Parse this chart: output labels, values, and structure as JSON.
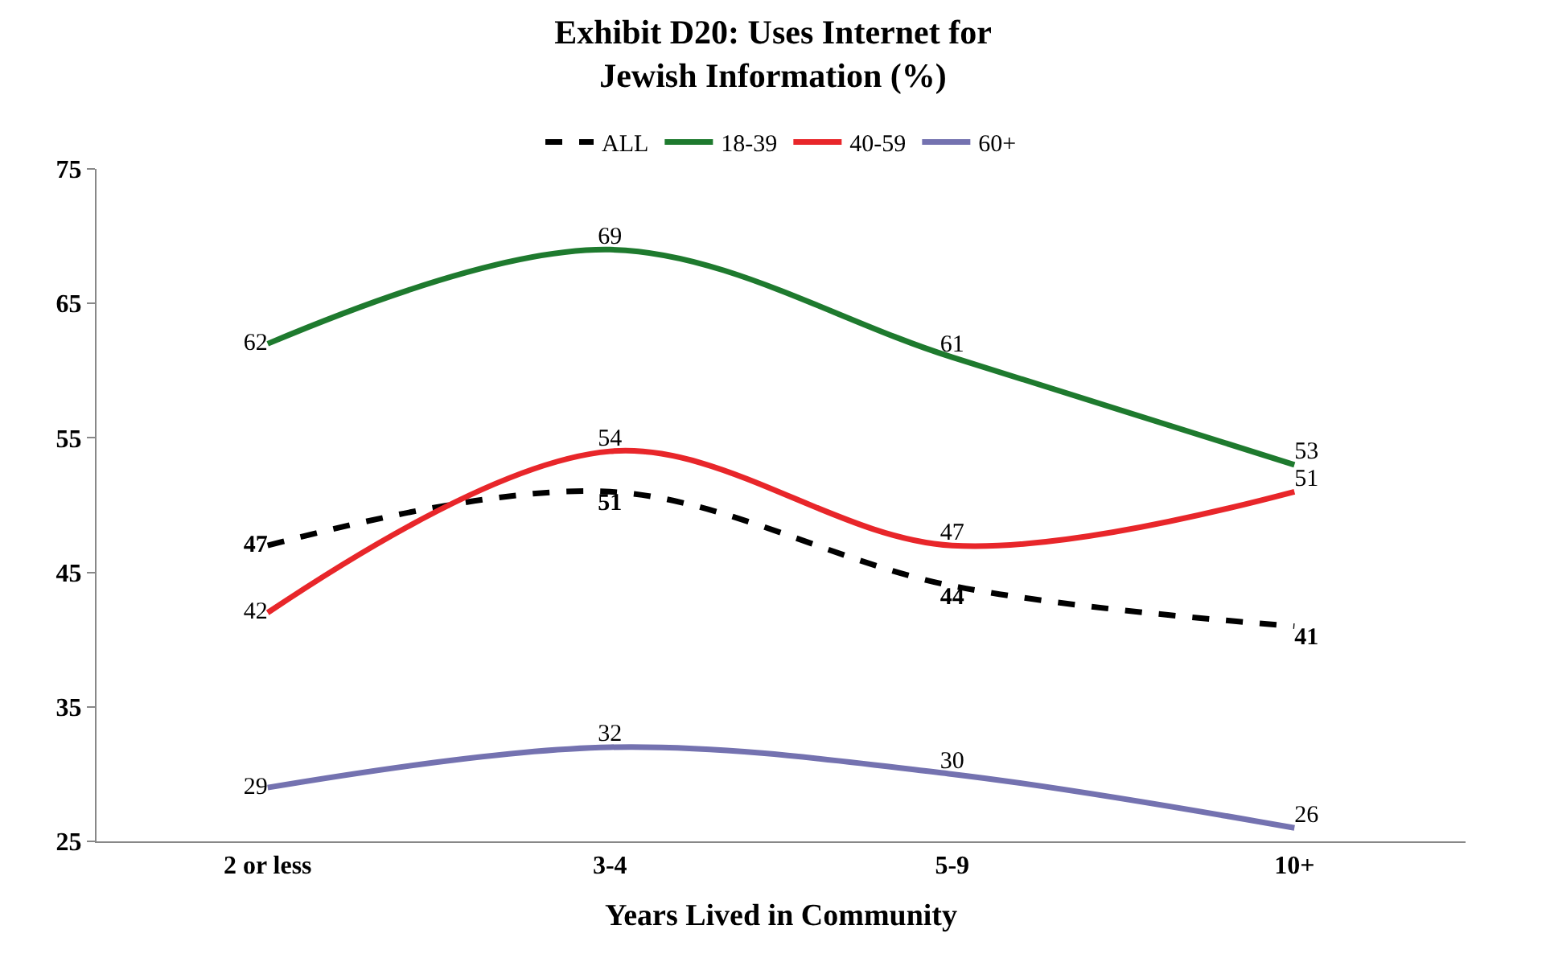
{
  "chart_data": {
    "type": "line",
    "title": "Exhibit D20: Uses Internet for\nJewish Information (%)",
    "xlabel": "Years Lived in Community",
    "categories": [
      "2 or less",
      "3-4",
      "5-9",
      "10+"
    ],
    "series": [
      {
        "name": "ALL",
        "color": "#000000",
        "line_style": "dashed",
        "values": [
          47,
          51,
          44,
          41
        ]
      },
      {
        "name": "18-39",
        "color": "#1e7a2e",
        "values": [
          62,
          69,
          61,
          53
        ]
      },
      {
        "name": "40-59",
        "color": "#e8262a",
        "values": [
          42,
          54,
          47,
          51
        ]
      },
      {
        "name": "60+",
        "color": "#7472b0",
        "values": [
          29,
          32,
          30,
          26
        ]
      }
    ],
    "ylim": [
      25,
      75
    ],
    "yticks": [
      25,
      35,
      45,
      55,
      65,
      75
    ],
    "legend": "top",
    "data_labels": true,
    "marker": "none"
  }
}
